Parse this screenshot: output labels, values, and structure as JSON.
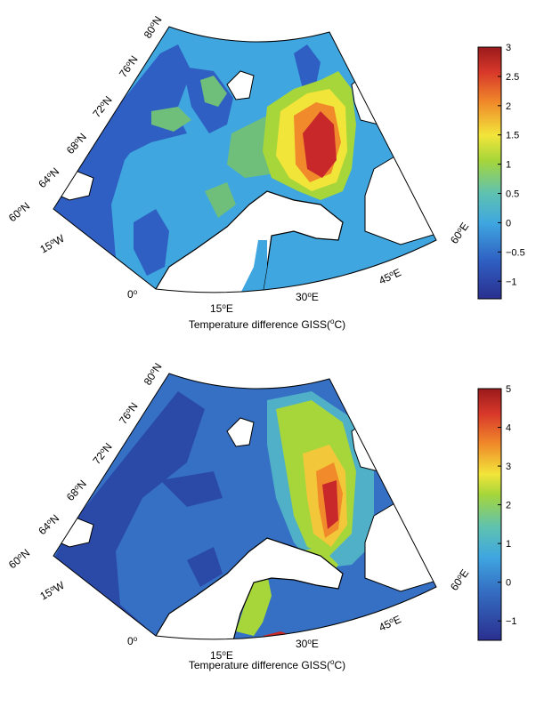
{
  "maps": [
    {
      "caption_text": "Temperature difference GISS",
      "caption_unit_open": "(",
      "caption_unit_sup": "o",
      "caption_unit_close": "C)",
      "lat_labels": [
        {
          "deg": "80",
          "hemi": "N"
        },
        {
          "deg": "76",
          "hemi": "N"
        },
        {
          "deg": "72",
          "hemi": "N"
        },
        {
          "deg": "68",
          "hemi": "N"
        },
        {
          "deg": "64",
          "hemi": "N"
        },
        {
          "deg": "60",
          "hemi": "N"
        }
      ],
      "lon_labels": [
        {
          "deg": "15",
          "hemi": "W"
        },
        {
          "deg": "0",
          "hemi": ""
        },
        {
          "deg": "15",
          "hemi": "E"
        },
        {
          "deg": "30",
          "hemi": "E"
        },
        {
          "deg": "45",
          "hemi": "E"
        },
        {
          "deg": "60",
          "hemi": "E"
        }
      ],
      "colorbar": {
        "min": -1.3,
        "max": 3,
        "ticks": [
          "3",
          "2.5",
          "2",
          "1.5",
          "1",
          "0.5",
          "0",
          "−0.5",
          "−1"
        ],
        "tick_values": [
          3,
          2.5,
          2,
          1.5,
          1,
          0.5,
          0,
          -0.5,
          -1
        ]
      }
    },
    {
      "caption_text": "Temperature difference GISS",
      "caption_unit_open": "(",
      "caption_unit_sup": "o",
      "caption_unit_close": "C)",
      "lat_labels": [
        {
          "deg": "80",
          "hemi": "N"
        },
        {
          "deg": "76",
          "hemi": "N"
        },
        {
          "deg": "72",
          "hemi": "N"
        },
        {
          "deg": "68",
          "hemi": "N"
        },
        {
          "deg": "64",
          "hemi": "N"
        },
        {
          "deg": "60",
          "hemi": "N"
        }
      ],
      "lon_labels": [
        {
          "deg": "15",
          "hemi": "W"
        },
        {
          "deg": "0",
          "hemi": ""
        },
        {
          "deg": "15",
          "hemi": "E"
        },
        {
          "deg": "30",
          "hemi": "E"
        },
        {
          "deg": "45",
          "hemi": "E"
        },
        {
          "deg": "60",
          "hemi": "E"
        }
      ],
      "colorbar": {
        "min": -1.5,
        "max": 5,
        "ticks": [
          "5",
          "4",
          "3",
          "2",
          "1",
          "0",
          "−1"
        ],
        "tick_values": [
          5,
          4,
          3,
          2,
          1,
          0,
          -1
        ]
      }
    }
  ],
  "colors": {
    "ocean_base": "#3fa6e0",
    "dark_blue": "#2b4aa8",
    "mid_blue": "#3570c4",
    "green": "#5fb07a",
    "yellow": "#f2e53a",
    "orange": "#f08a2a",
    "red": "#c8282a",
    "land": "#ffffff"
  }
}
